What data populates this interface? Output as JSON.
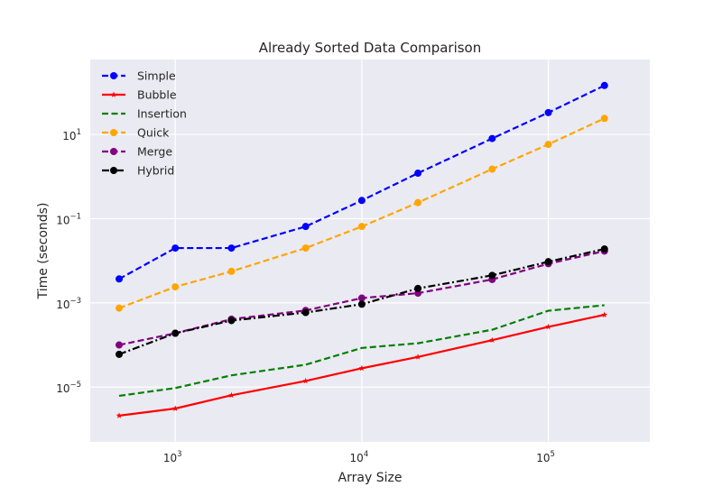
{
  "chart_data": {
    "type": "line",
    "title": "Already Sorted Data Comparison",
    "xlabel": "Array Size",
    "ylabel": "Time (seconds)",
    "xscale": "log",
    "yscale": "log",
    "xlim": [
      350,
      350000
    ],
    "ylim": [
      5e-07,
      600
    ],
    "grid": true,
    "legend_position": "top-left",
    "x_ticks": [
      {
        "value": 1000,
        "base": "10",
        "exp": "3"
      },
      {
        "value": 10000,
        "base": "10",
        "exp": "4"
      },
      {
        "value": 100000,
        "base": "10",
        "exp": "5"
      }
    ],
    "y_ticks": [
      {
        "value": 1e-05,
        "base": "10",
        "exp": "−5"
      },
      {
        "value": 0.001,
        "base": "10",
        "exp": "−3"
      },
      {
        "value": 0.1,
        "base": "10",
        "exp": "−1"
      },
      {
        "value": 10,
        "base": "10",
        "exp": "1"
      }
    ],
    "x": [
      500,
      1000,
      2000,
      5000,
      10000,
      20000,
      50000,
      100000,
      200000
    ],
    "series": [
      {
        "name": "Simple",
        "color": "#0000ff",
        "dash": "7,3.5",
        "marker": "circle",
        "values": [
          0.0037,
          0.02,
          0.02,
          0.065,
          0.27,
          1.2,
          8,
          33,
          145
        ]
      },
      {
        "name": "Bubble",
        "color": "#ff0000",
        "dash": "",
        "marker": "star",
        "values": [
          2.1e-06,
          3.1e-06,
          6.4e-06,
          1.4e-05,
          2.8e-05,
          5.2e-05,
          0.00013,
          0.00027,
          0.00052
        ]
      },
      {
        "name": "Insertion",
        "color": "#008000",
        "dash": "7,3.5",
        "marker": "none",
        "values": [
          6.2e-06,
          9.5e-06,
          1.9e-05,
          3.4e-05,
          8.5e-05,
          0.00011,
          0.00023,
          0.00065,
          0.00088
        ]
      },
      {
        "name": "Quick",
        "color": "#ffa500",
        "dash": "7,3.5",
        "marker": "circle",
        "values": [
          0.00075,
          0.0024,
          0.0056,
          0.02,
          0.065,
          0.24,
          1.5,
          5.8,
          24
        ]
      },
      {
        "name": "Merge",
        "color": "#800080",
        "dash": "7,3.5",
        "marker": "circle",
        "values": [
          0.0001,
          0.00019,
          0.00041,
          0.00066,
          0.0013,
          0.0017,
          0.0036,
          0.0085,
          0.017
        ]
      },
      {
        "name": "Hybrid",
        "color": "#000000",
        "dash": "8,3,2,3",
        "marker": "circle",
        "values": [
          6e-05,
          0.00019,
          0.00038,
          0.00059,
          0.00093,
          0.0022,
          0.0045,
          0.0095,
          0.019
        ]
      }
    ]
  }
}
